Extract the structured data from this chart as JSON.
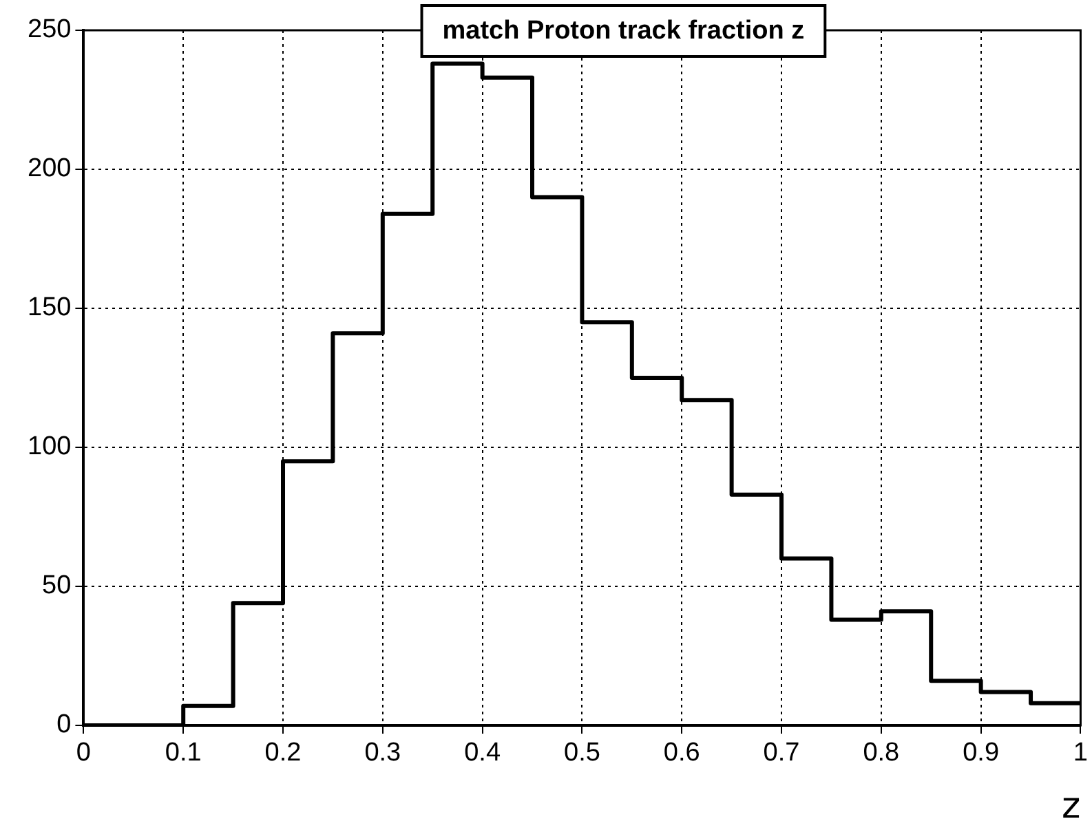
{
  "chart_data": {
    "type": "histogram",
    "title": "match Proton track fraction z",
    "xlabel": "z",
    "bins": [
      0,
      0.05,
      0.1,
      0.15,
      0.2,
      0.25,
      0.3,
      0.35,
      0.4,
      0.45,
      0.5,
      0.55,
      0.6,
      0.65,
      0.7,
      0.75,
      0.8,
      0.85,
      0.9,
      0.95,
      1
    ],
    "values": [
      0,
      0,
      7,
      44,
      95,
      141,
      184,
      238,
      233,
      190,
      145,
      125,
      117,
      83,
      60,
      38,
      41,
      16,
      12,
      8
    ],
    "color": "#000000",
    "xlim": [
      0,
      1
    ],
    "xticks": [
      0,
      0.1,
      0.2,
      0.3,
      0.4,
      0.5,
      0.6,
      0.7,
      0.8,
      0.9,
      1
    ],
    "ylim": [
      0,
      250
    ],
    "yticks": [
      0,
      50,
      100,
      150,
      200,
      250
    ],
    "grid": true,
    "legend": false
  }
}
